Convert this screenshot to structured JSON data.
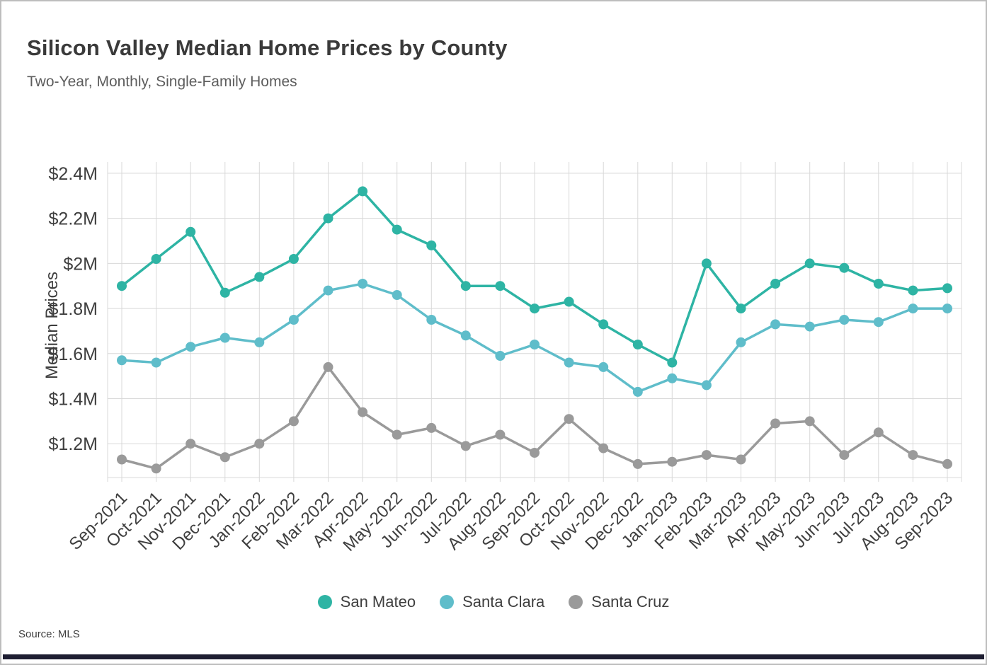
{
  "chart_data": {
    "type": "line",
    "title": "Silicon Valley Median Home Prices by County",
    "subtitle": "Two-Year, Monthly, Single-Family Homes",
    "ylabel": "Median Prices",
    "xlabel": "",
    "value_unit": "$M",
    "ylim": [
      1.05,
      2.45
    ],
    "yticks": [
      1.2,
      1.4,
      1.6,
      1.8,
      2.0,
      2.2,
      2.4
    ],
    "ytick_labels": [
      "$1.2M",
      "$1.4M",
      "$1.6M",
      "$1.8M",
      "$2M",
      "$2.2M",
      "$2.4M"
    ],
    "grid": true,
    "legend_position": "bottom",
    "categories": [
      "Sep-2021",
      "Oct-2021",
      "Nov-2021",
      "Dec-2021",
      "Jan-2022",
      "Feb-2022",
      "Mar-2022",
      "Apr-2022",
      "May-2022",
      "Jun-2022",
      "Jul-2022",
      "Aug-2022",
      "Sep-2022",
      "Oct-2022",
      "Nov-2022",
      "Dec-2022",
      "Jan-2023",
      "Feb-2023",
      "Mar-2023",
      "Apr-2023",
      "May-2023",
      "Jun-2023",
      "Jul-2023",
      "Aug-2023",
      "Sep-2023"
    ],
    "series": [
      {
        "name": "San Mateo",
        "color": "#2eb4a4",
        "values": [
          1.9,
          2.02,
          2.14,
          1.87,
          1.94,
          2.02,
          2.2,
          2.32,
          2.15,
          2.08,
          1.9,
          1.9,
          1.8,
          1.83,
          1.73,
          1.64,
          1.56,
          2.0,
          1.8,
          1.91,
          2.0,
          1.98,
          1.91,
          1.88,
          1.89
        ]
      },
      {
        "name": "Santa Clara",
        "color": "#5fbdca",
        "values": [
          1.57,
          1.56,
          1.63,
          1.67,
          1.65,
          1.75,
          1.88,
          1.91,
          1.86,
          1.75,
          1.68,
          1.59,
          1.64,
          1.56,
          1.54,
          1.43,
          1.49,
          1.46,
          1.65,
          1.73,
          1.72,
          1.75,
          1.74,
          1.8,
          1.8
        ]
      },
      {
        "name": "Santa Cruz",
        "color": "#9a9a9a",
        "values": [
          1.13,
          1.09,
          1.2,
          1.14,
          1.2,
          1.3,
          1.54,
          1.34,
          1.24,
          1.27,
          1.19,
          1.24,
          1.16,
          1.31,
          1.18,
          1.11,
          1.12,
          1.15,
          1.13,
          1.29,
          1.3,
          1.15,
          1.25,
          1.15,
          1.11
        ]
      }
    ],
    "colors": {
      "grid": "#d8d8d8",
      "text": "#3f3f3f",
      "bottom_bar": "#1e1e32"
    }
  },
  "footer": {
    "source": "Source:  MLS"
  }
}
